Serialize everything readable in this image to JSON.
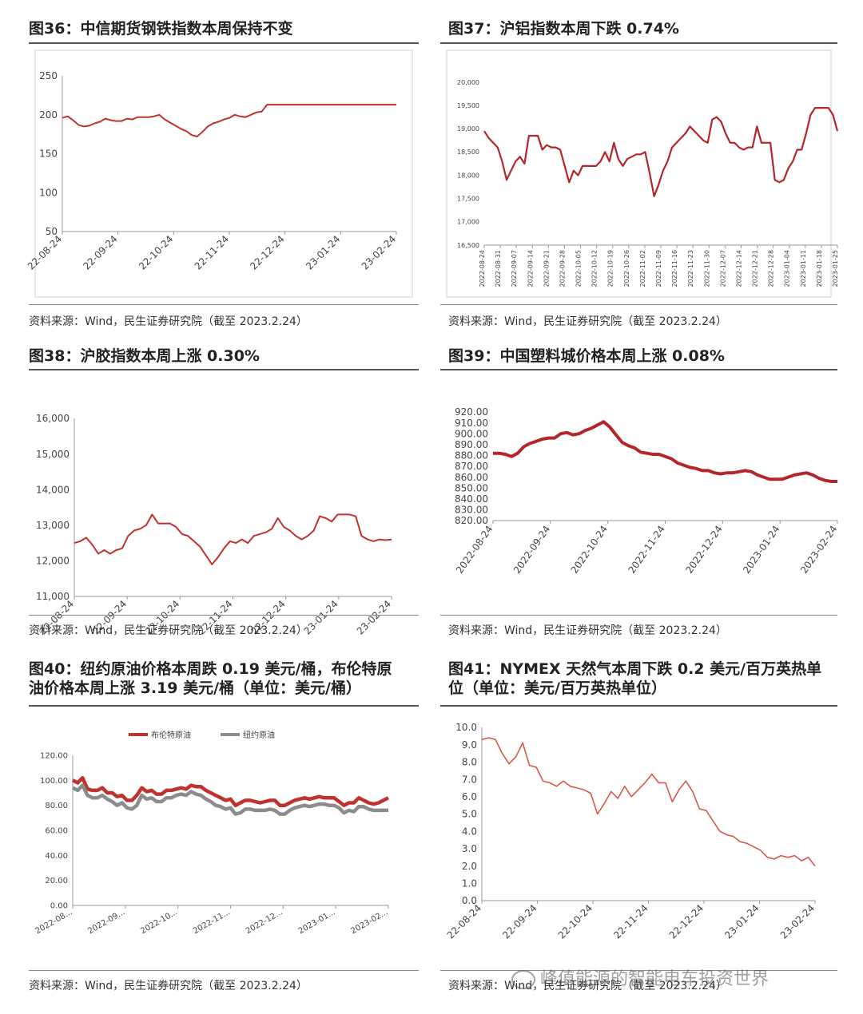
{
  "panels": [
    {
      "title": "图36：中信期货钢铁指数本周保持不变",
      "source": "资料来源：Wind，民生证券研究院（截至 2023.2.24）"
    },
    {
      "title": "图37：沪铝指数本周下跌 0.74%",
      "source": "资料来源：Wind，民生证券研究院（截至 2023.2.24）"
    },
    {
      "title": "图38：沪胶指数本周上涨 0.30%",
      "source": "资料来源：Wind，民生证券研究院（截至 2023.2.24）"
    },
    {
      "title": "图39：中国塑料城价格本周上涨 0.08%",
      "source": "资料来源：Wind，民生证券研究院（截至 2023.2.24）"
    },
    {
      "title_line1": "图40：纽约原油价格本周跌 0.19 美元/桶，布伦特原",
      "title_line2": "油价格本周上涨 3.19 美元/桶（单位：美元/桶）",
      "source": "资料来源：Wind，民生证券研究院（截至 2023.2.24）"
    },
    {
      "title_line1": "图41：NYMEX 天然气本周下跌 0.2 美元/百万英热单",
      "title_line2": "位（单位：美元/百万英热单位）",
      "source": "资料来源：Wind，民生证券研究院（截至 2023.2.24）"
    }
  ],
  "watermark": "峰值能源的智能电车投资世界",
  "colors": {
    "line_red": "#c0322d",
    "line_red_light": "#d9574a",
    "line_gray": "#8c8c8c"
  },
  "chart_data": [
    {
      "type": "line",
      "xticklabels": [
        "22-08-24",
        "22-09-24",
        "22-10-24",
        "22-11-24",
        "22-12-24",
        "23-01-24",
        "23-02-24"
      ],
      "yticklabels": [
        "250",
        "200",
        "150",
        "100",
        "50"
      ],
      "ylim": [
        50,
        250
      ],
      "series": [
        {
          "color": "#c0322d",
          "values": [
            196,
            198,
            193,
            187,
            185,
            186,
            189,
            191,
            195,
            193,
            192,
            192,
            195,
            194,
            197,
            197,
            197,
            198,
            200,
            194,
            190,
            186,
            182,
            179,
            174,
            172,
            178,
            185,
            189,
            191,
            194,
            196,
            200,
            198,
            197,
            200,
            203,
            204,
            213,
            213,
            213,
            213,
            213,
            213,
            213,
            213,
            213,
            213,
            213,
            213,
            213,
            213,
            213,
            213,
            213,
            213,
            213,
            213,
            213,
            213,
            213,
            213,
            213
          ]
        }
      ]
    },
    {
      "type": "line",
      "xticklabels": [
        "2022-08-24",
        "2022-08-31",
        "2022-09-07",
        "2022-09-14",
        "2022-09-21",
        "2022-09-28",
        "2022-10-05",
        "2022-10-12",
        "2022-10-19",
        "2022-10-26",
        "2022-11-02",
        "2022-11-09",
        "2022-11-16",
        "2022-11-23",
        "2022-11-30",
        "2022-12-07",
        "2022-12-14",
        "2022-12-21",
        "2022-12-28",
        "2023-01-04",
        "2023-01-11",
        "2023-01-18",
        "2023-01-25"
      ],
      "yticklabels": [
        "20,000",
        "19,500",
        "19,000",
        "18,500",
        "18,000",
        "17,500",
        "17,000",
        "16,500"
      ],
      "ylim": [
        16500,
        20000
      ],
      "series": [
        {
          "color": "#b5262b",
          "values": [
            18950,
            18800,
            18700,
            18600,
            18300,
            17900,
            18100,
            18300,
            18400,
            18250,
            18850,
            18850,
            18850,
            18550,
            18650,
            18600,
            18600,
            18550,
            18200,
            17850,
            18100,
            18000,
            18200,
            18200,
            18200,
            18200,
            18300,
            18500,
            18300,
            18700,
            18350,
            18200,
            18350,
            18400,
            18450,
            18450,
            18500,
            18050,
            17550,
            17800,
            18100,
            18300,
            18600,
            18700,
            18800,
            18900,
            19050,
            18950,
            18850,
            18750,
            18700,
            19200,
            19250,
            19150,
            18900,
            18700,
            18700,
            18600,
            18550,
            18600,
            18600,
            19050,
            18700,
            18700,
            18700,
            17900,
            17850,
            17900,
            18150,
            18300,
            18550,
            18550,
            18900,
            19300,
            19450,
            19450,
            19450,
            19450,
            19300,
            18950
          ]
        }
      ]
    },
    {
      "type": "line",
      "xticklabels": [
        "22-08-24",
        "22-09-24",
        "22-10-24",
        "22-11-24",
        "22-12-24",
        "23-01-24",
        "23-02-24"
      ],
      "yticklabels": [
        "16,000",
        "15,000",
        "14,000",
        "13,000",
        "12,000",
        "11,000"
      ],
      "ylim": [
        11000,
        16000
      ],
      "series": [
        {
          "color": "#c0322d",
          "values": [
            12500,
            12550,
            12650,
            12450,
            12200,
            12300,
            12200,
            12300,
            12350,
            12700,
            12850,
            12900,
            13000,
            13300,
            13050,
            13050,
            13050,
            12950,
            12750,
            12700,
            12550,
            12400,
            12150,
            11900,
            12100,
            12350,
            12550,
            12500,
            12600,
            12500,
            12700,
            12750,
            12800,
            12900,
            13200,
            12950,
            12850,
            12700,
            12600,
            12700,
            12850,
            13250,
            13200,
            13100,
            13300,
            13300,
            13300,
            13250,
            12700,
            12600,
            12550,
            12600,
            12580,
            12600
          ]
        }
      ]
    },
    {
      "type": "line",
      "xticklabels": [
        "2022-08-24",
        "2022-09-24",
        "2022-10-24",
        "2022-11-24",
        "2022-12-24",
        "2023-01-24",
        "2023-02-24"
      ],
      "yticklabels": [
        "920.00",
        "910.00",
        "900.00",
        "890.00",
        "880.00",
        "870.00",
        "860.00",
        "850.00",
        "840.00",
        "830.00",
        "820.00"
      ],
      "ylim": [
        820,
        920
      ],
      "series": [
        {
          "color": "#b5262b",
          "values": [
            882,
            882,
            881,
            879,
            882,
            888,
            891,
            893,
            895,
            896,
            896,
            900,
            901,
            899,
            900,
            903,
            905,
            908,
            911,
            906,
            899,
            892,
            889,
            887,
            883,
            882,
            881,
            881,
            879,
            877,
            873,
            871,
            869,
            868,
            866,
            866,
            864,
            863,
            864,
            864,
            865,
            866,
            865,
            862,
            860,
            858,
            858,
            858,
            860,
            862,
            863,
            864,
            862,
            859,
            857,
            856,
            856
          ]
        }
      ]
    },
    {
      "type": "line",
      "xticklabels": [
        "2022-08...",
        "2022-09...",
        "2022-10...",
        "2022-11...",
        "2022-12...",
        "2023-01...",
        "2023-02..."
      ],
      "yticklabels": [
        "120.00",
        "100.00",
        "80.00",
        "60.00",
        "40.00",
        "20.00",
        "0.00"
      ],
      "ylim": [
        0,
        120
      ],
      "legend": [
        "布伦特原油",
        "纽约原油"
      ],
      "series": [
        {
          "name": "布伦特原油",
          "color": "#c0322d",
          "values": [
            100,
            98,
            102,
            93,
            92,
            92,
            94,
            90,
            90,
            87,
            88,
            84,
            84,
            88,
            94,
            91,
            92,
            89,
            89,
            92,
            92,
            93,
            94,
            93,
            96,
            95,
            95,
            92,
            90,
            88,
            86,
            84,
            85,
            80,
            82,
            84,
            84,
            83,
            82,
            83,
            84,
            84,
            80,
            80,
            82,
            84,
            85,
            86,
            85,
            86,
            87,
            86,
            86,
            86,
            83,
            80,
            82,
            82,
            86,
            84,
            82,
            81,
            82,
            84,
            86
          ]
        },
        {
          "name": "纽约原油",
          "color": "#8c8c8c",
          "values": [
            94,
            92,
            96,
            88,
            86,
            86,
            88,
            85,
            83,
            80,
            82,
            78,
            77,
            80,
            88,
            85,
            86,
            83,
            83,
            86,
            86,
            88,
            89,
            88,
            91,
            89,
            88,
            85,
            83,
            80,
            79,
            77,
            78,
            73,
            74,
            77,
            77,
            76,
            76,
            76,
            77,
            76,
            73,
            73,
            76,
            78,
            79,
            80,
            79,
            80,
            81,
            81,
            80,
            80,
            78,
            74,
            76,
            75,
            79,
            79,
            77,
            76,
            76,
            76,
            76
          ]
        }
      ]
    },
    {
      "type": "line",
      "xticklabels": [
        "22-08-24",
        "22-09-24",
        "22-10-24",
        "22-11-24",
        "22-12-24",
        "23-01-24",
        "23-02-24"
      ],
      "yticklabels": [
        "10.0",
        "9.0",
        "8.0",
        "7.0",
        "6.0",
        "5.0",
        "4.0",
        "3.0",
        "2.0",
        "1.0",
        "0.0"
      ],
      "ylim": [
        0,
        10
      ],
      "series": [
        {
          "color": "#d9574a",
          "values": [
            9.3,
            9.4,
            9.3,
            8.5,
            7.9,
            8.3,
            9.1,
            7.8,
            7.7,
            6.9,
            6.8,
            6.6,
            6.9,
            6.6,
            6.5,
            6.4,
            6.2,
            5.0,
            5.6,
            6.3,
            5.9,
            6.6,
            6.0,
            6.4,
            6.8,
            7.3,
            6.8,
            6.8,
            5.7,
            6.4,
            6.9,
            6.3,
            5.3,
            5.2,
            4.6,
            4.0,
            3.8,
            3.7,
            3.4,
            3.3,
            3.1,
            2.9,
            2.5,
            2.4,
            2.6,
            2.5,
            2.6,
            2.3,
            2.5,
            2.0
          ]
        }
      ]
    }
  ]
}
